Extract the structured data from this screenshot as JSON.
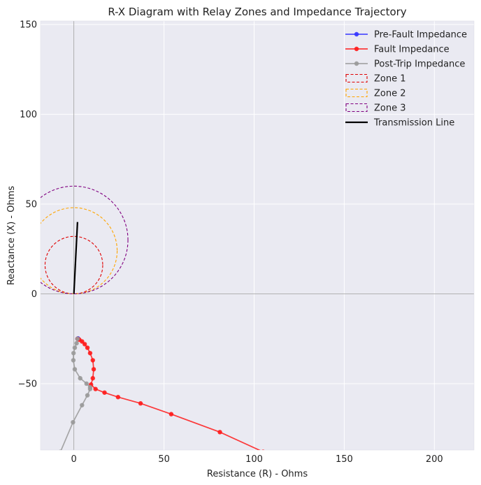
{
  "chart_data": {
    "type": "line",
    "title": "R-X Diagram with Relay Zones and Impedance Trajectory",
    "xlabel": "Resistance (R) - Ohms",
    "ylabel": "Reactance (X) - Ohms",
    "xlim": [
      -18.5,
      222
    ],
    "ylim": [
      -87,
      152
    ],
    "xticks": [
      0,
      50,
      100,
      150,
      200
    ],
    "yticks": [
      -50,
      0,
      50,
      100,
      150
    ],
    "grid": true,
    "legend_position": "top-right",
    "colors": {
      "background": "#eaeaf2",
      "grid": "#ffffff",
      "axis_line": "#999999",
      "pre_fault": "#3333ff",
      "fault": "#ff1a1a",
      "post_trip": "#999999",
      "zone1": "#e00000",
      "zone2": "#ffa500",
      "zone3": "#800080",
      "line": "#000000"
    },
    "series": [
      {
        "name": "Pre-Fault Impedance",
        "color": "#3333ff",
        "points": [
          [
            2,
            -25
          ],
          [
            2.3,
            -24.8
          ]
        ]
      },
      {
        "name": "Fault Impedance",
        "color": "#ff1a1a",
        "points": [
          [
            2,
            -25
          ],
          [
            3,
            -25.5
          ],
          [
            4.5,
            -26.5
          ],
          [
            6,
            -28
          ],
          [
            7.5,
            -30
          ],
          [
            9,
            -33
          ],
          [
            10.5,
            -37
          ],
          [
            11,
            -42
          ],
          [
            10.5,
            -47
          ],
          [
            9.5,
            -50.5
          ],
          [
            12,
            -53
          ],
          [
            17,
            -55
          ],
          [
            24.5,
            -57.5
          ],
          [
            37,
            -61
          ],
          [
            54,
            -67
          ],
          [
            81,
            -77
          ],
          [
            105,
            -88
          ]
        ]
      },
      {
        "name": "Post-Trip Impedance",
        "color": "#999999",
        "points": [
          [
            2,
            -25
          ],
          [
            1.5,
            -27.5
          ],
          [
            0.5,
            -30
          ],
          [
            -0.2,
            -33
          ],
          [
            -0.3,
            -37
          ],
          [
            0.5,
            -42
          ],
          [
            3.5,
            -47
          ],
          [
            7,
            -50
          ],
          [
            9,
            -52
          ],
          [
            9,
            -53
          ],
          [
            7.5,
            -56.5
          ],
          [
            4.5,
            -62
          ],
          [
            -0.5,
            -71.5
          ],
          [
            -7.5,
            -88
          ]
        ]
      }
    ],
    "zones": [
      {
        "name": "Zone 1",
        "center": [
          0,
          16
        ],
        "radius": 16,
        "color": "#e00000"
      },
      {
        "name": "Zone 2",
        "center": [
          0,
          24
        ],
        "radius": 24,
        "color": "#ffa500"
      },
      {
        "name": "Zone 3",
        "center": [
          0,
          30
        ],
        "radius": 30,
        "color": "#800080"
      }
    ],
    "transmission_line": {
      "name": "Transmission Line",
      "from": [
        0,
        0
      ],
      "to": [
        2,
        40
      ],
      "color": "#000000"
    },
    "legend": [
      "Pre-Fault Impedance",
      "Fault Impedance",
      "Post-Trip Impedance",
      "Zone 1",
      "Zone 2",
      "Zone 3",
      "Transmission Line"
    ]
  }
}
